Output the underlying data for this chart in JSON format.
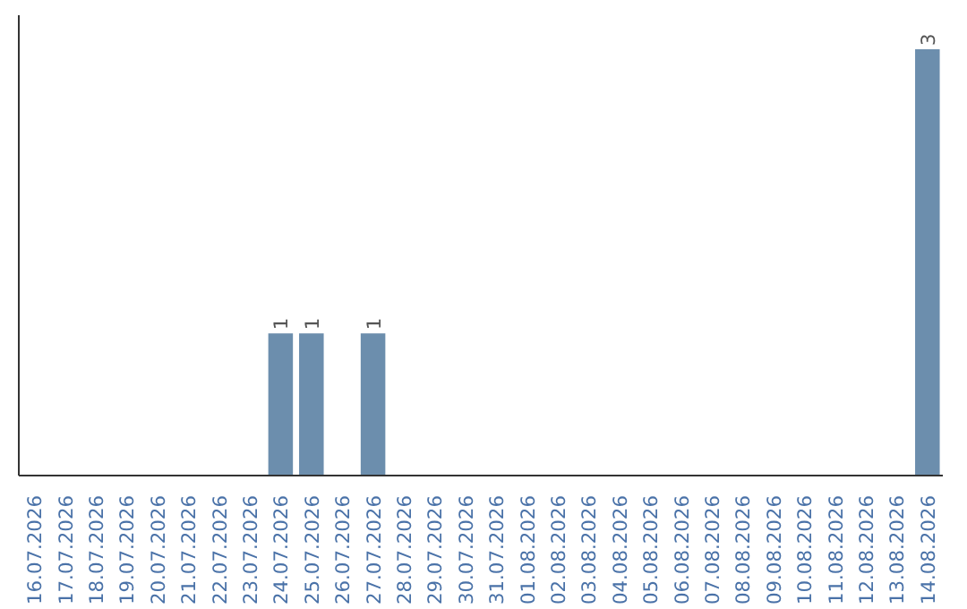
{
  "chart_data": {
    "type": "bar",
    "categories": [
      "16.07.2026",
      "17.07.2026",
      "18.07.2026",
      "19.07.2026",
      "20.07.2026",
      "21.07.2026",
      "22.07.2026",
      "23.07.2026",
      "24.07.2026",
      "25.07.2026",
      "26.07.2026",
      "27.07.2026",
      "28.07.2026",
      "29.07.2026",
      "30.07.2026",
      "31.07.2026",
      "01.08.2026",
      "02.08.2026",
      "03.08.2026",
      "04.08.2026",
      "05.08.2026",
      "06.08.2026",
      "07.08.2026",
      "08.08.2026",
      "09.08.2026",
      "10.08.2026",
      "11.08.2026",
      "12.08.2026",
      "13.08.2026",
      "14.08.2026"
    ],
    "values": [
      0,
      0,
      0,
      0,
      0,
      0,
      0,
      0,
      1,
      1,
      0,
      1,
      0,
      0,
      0,
      0,
      0,
      0,
      0,
      0,
      0,
      0,
      0,
      0,
      0,
      0,
      0,
      0,
      0,
      3
    ],
    "value_labels": [
      null,
      null,
      null,
      null,
      null,
      null,
      null,
      null,
      "1",
      "1",
      null,
      "1",
      null,
      null,
      null,
      null,
      null,
      null,
      null,
      null,
      null,
      null,
      null,
      null,
      null,
      null,
      null,
      null,
      null,
      "3"
    ],
    "color": "#6c8ead",
    "tick_labels": "x"
  }
}
